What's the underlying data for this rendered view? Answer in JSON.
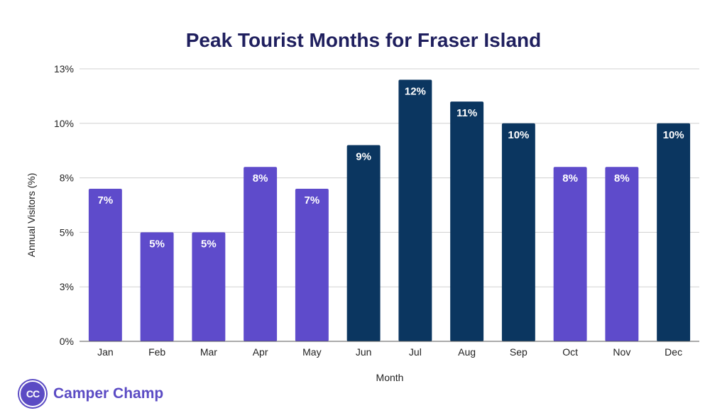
{
  "chart_data": {
    "type": "bar",
    "title": "Peak Tourist Months for Fraser Island",
    "xlabel": "Month",
    "ylabel": "Annual Visitors (%)",
    "categories": [
      "Jan",
      "Feb",
      "Mar",
      "Apr",
      "May",
      "Jun",
      "Jul",
      "Aug",
      "Sep",
      "Oct",
      "Nov",
      "Dec"
    ],
    "values": [
      7,
      5,
      5,
      8,
      7,
      9,
      12,
      11,
      10,
      8,
      8,
      10
    ],
    "data_labels": [
      "7%",
      "5%",
      "5%",
      "8%",
      "7%",
      "9%",
      "12%",
      "11%",
      "10%",
      "8%",
      "8%",
      "10%"
    ],
    "bar_colors": [
      "#5e4bcb",
      "#5e4bcb",
      "#5e4bcb",
      "#5e4bcb",
      "#5e4bcb",
      "#0b3660",
      "#0b3660",
      "#0b3660",
      "#0b3660",
      "#5e4bcb",
      "#5e4bcb",
      "#0b3660"
    ],
    "y_ticks": [
      {
        "value": 0,
        "label": "0%"
      },
      {
        "value": 2.5,
        "label": "3%"
      },
      {
        "value": 5,
        "label": "5%"
      },
      {
        "value": 7.5,
        "label": "8%"
      },
      {
        "value": 10,
        "label": "10%"
      },
      {
        "value": 12.5,
        "label": "13%"
      }
    ],
    "ylim": [
      0,
      12.5
    ],
    "grid": true,
    "legend": "none"
  },
  "branding": {
    "logo_initials": "CC",
    "logo_text": "Camper Champ",
    "logo_color": "#5b4bc4"
  }
}
